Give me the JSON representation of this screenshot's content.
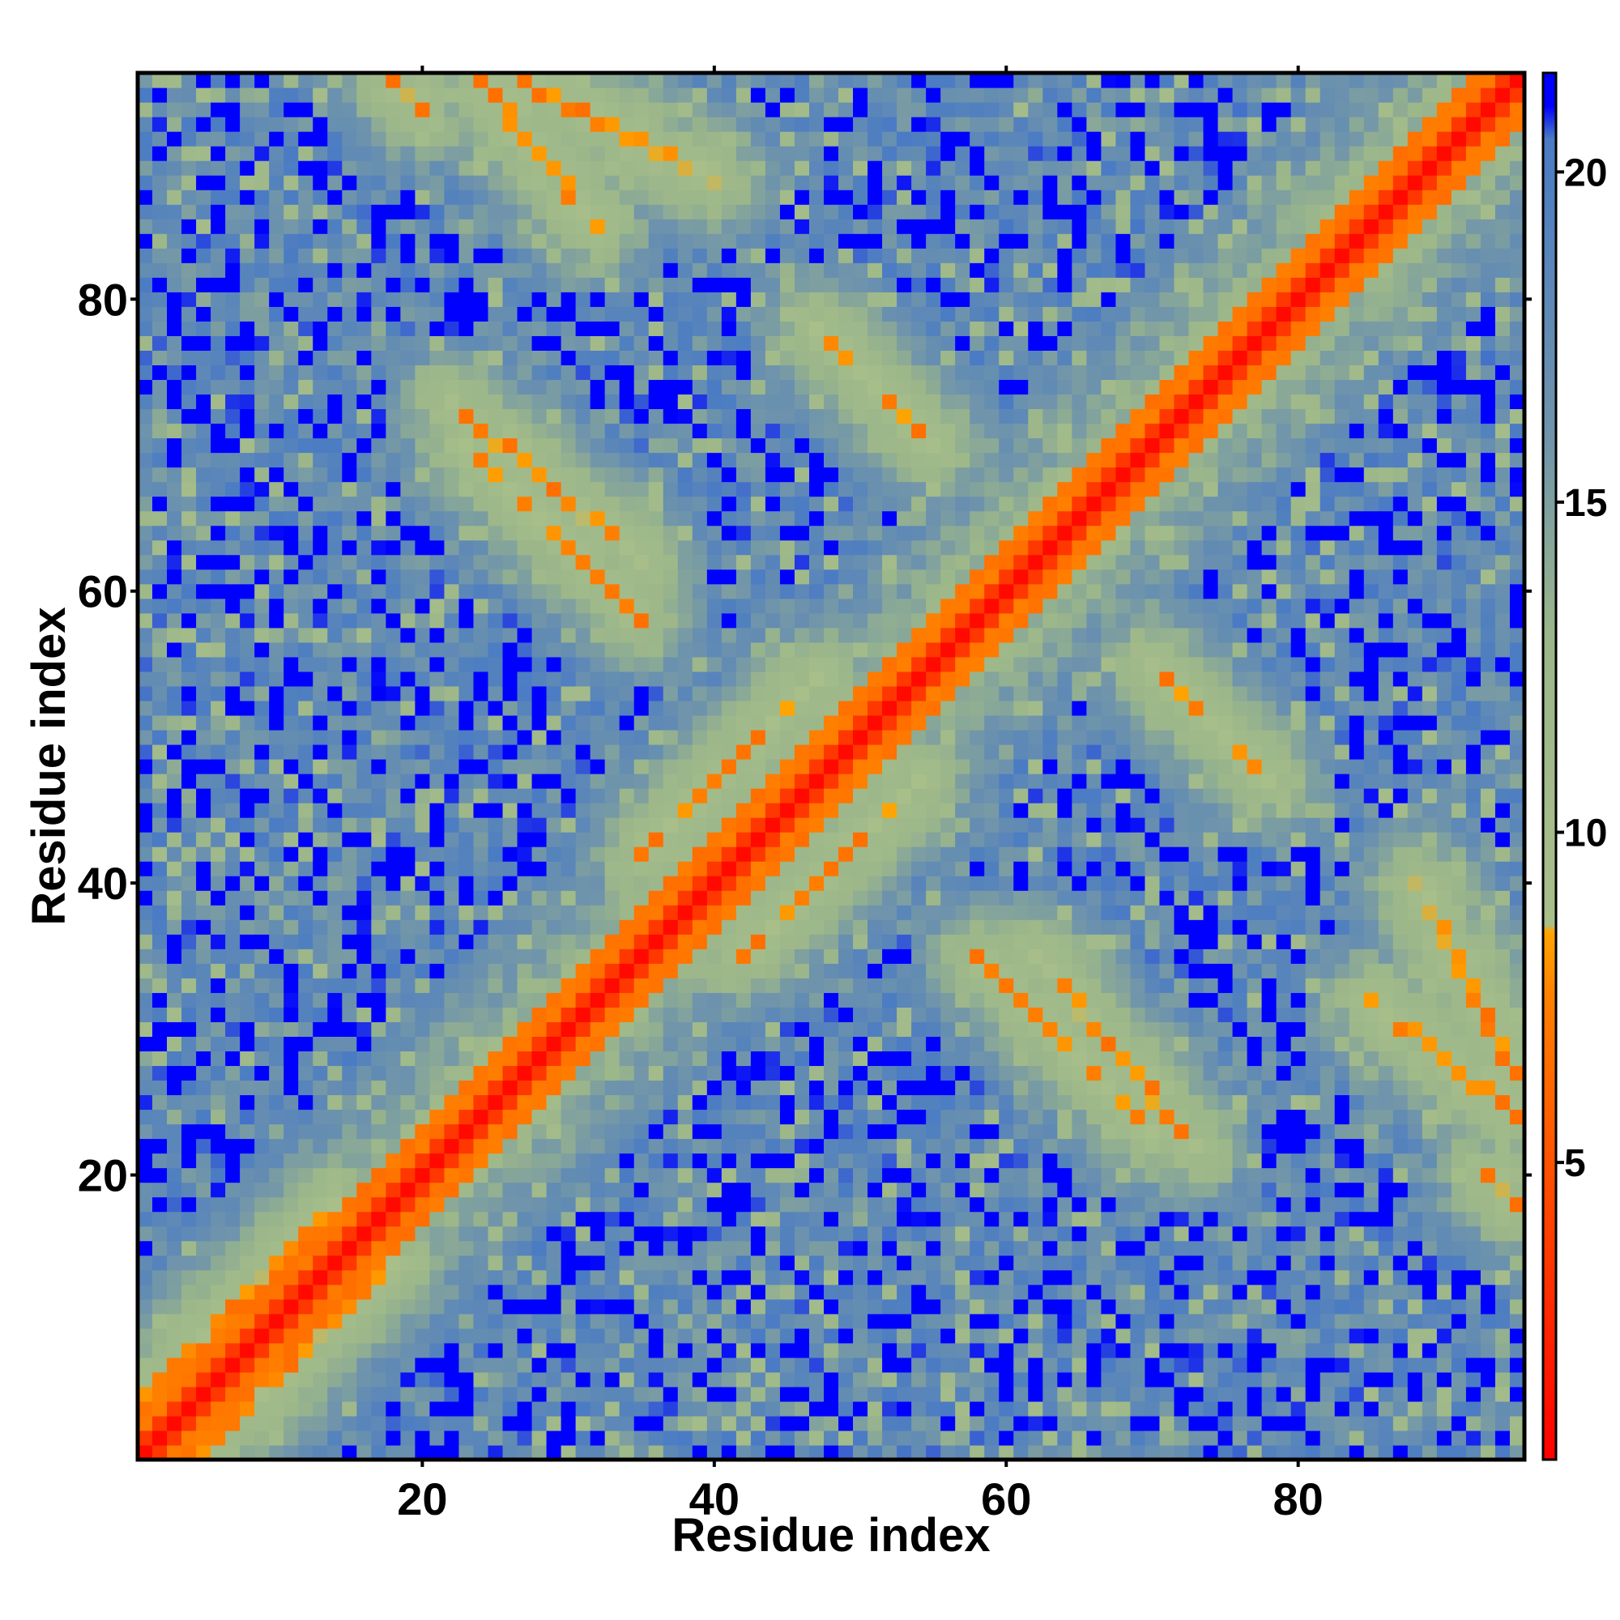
{
  "chart_data": {
    "type": "heatmap",
    "title": "",
    "xlabel": "Residue index",
    "ylabel": "Residue index",
    "n_residues": 95,
    "xlim": [
      0.5,
      95.5
    ],
    "ylim": [
      0.5,
      95.5
    ],
    "x_ticks": [
      20,
      40,
      60,
      80
    ],
    "y_ticks": [
      20,
      40,
      60,
      80
    ],
    "colorbar": {
      "range": [
        0.5,
        21.5
      ],
      "ticks": [
        5,
        10,
        15,
        20
      ],
      "stops": [
        {
          "value": 0.5,
          "color": "#ff0000"
        },
        {
          "value": 7.5,
          "color": "#ff8000"
        },
        {
          "value": 8.5,
          "color": "#ffa500"
        },
        {
          "value": 8.6,
          "color": "#a9bf8a"
        },
        {
          "value": 13.0,
          "color": "#9bb68a"
        },
        {
          "value": 16.0,
          "color": "#6f94ab"
        },
        {
          "value": 20.5,
          "color": "#4a7bc4"
        },
        {
          "value": 21.0,
          "color": "#0000ff"
        }
      ]
    },
    "structure": {
      "saturation_value": 21,
      "diagonal_band_width": 1,
      "helix_anchors": [
        2,
        22,
        47,
        62,
        75,
        95
      ],
      "contact_bands": [
        {
          "residues_i": [
            23,
            35
          ],
          "residues_j": [
            70,
            58
          ]
        },
        {
          "residues_i": [
            27,
            40
          ],
          "residues_j": [
            95,
            88
          ]
        },
        {
          "residues_i": [
            47,
            55
          ],
          "residues_j": [
            78,
            70
          ]
        },
        {
          "residues_i": [
            62,
            73
          ],
          "residues_j": [
            35,
            22
          ]
        },
        {
          "residues_i": [
            85,
            95
          ],
          "residues_j": [
            32,
            24
          ]
        },
        {
          "residues_i": [
            18,
            20
          ],
          "residues_j": [
            95,
            93
          ]
        },
        {
          "residues_i": [
            5,
            18
          ],
          "residues_j": [
            1,
            14
          ]
        },
        {
          "residues_i": [
            35,
            47
          ],
          "residues_j": [
            42,
            54
          ]
        }
      ]
    }
  }
}
